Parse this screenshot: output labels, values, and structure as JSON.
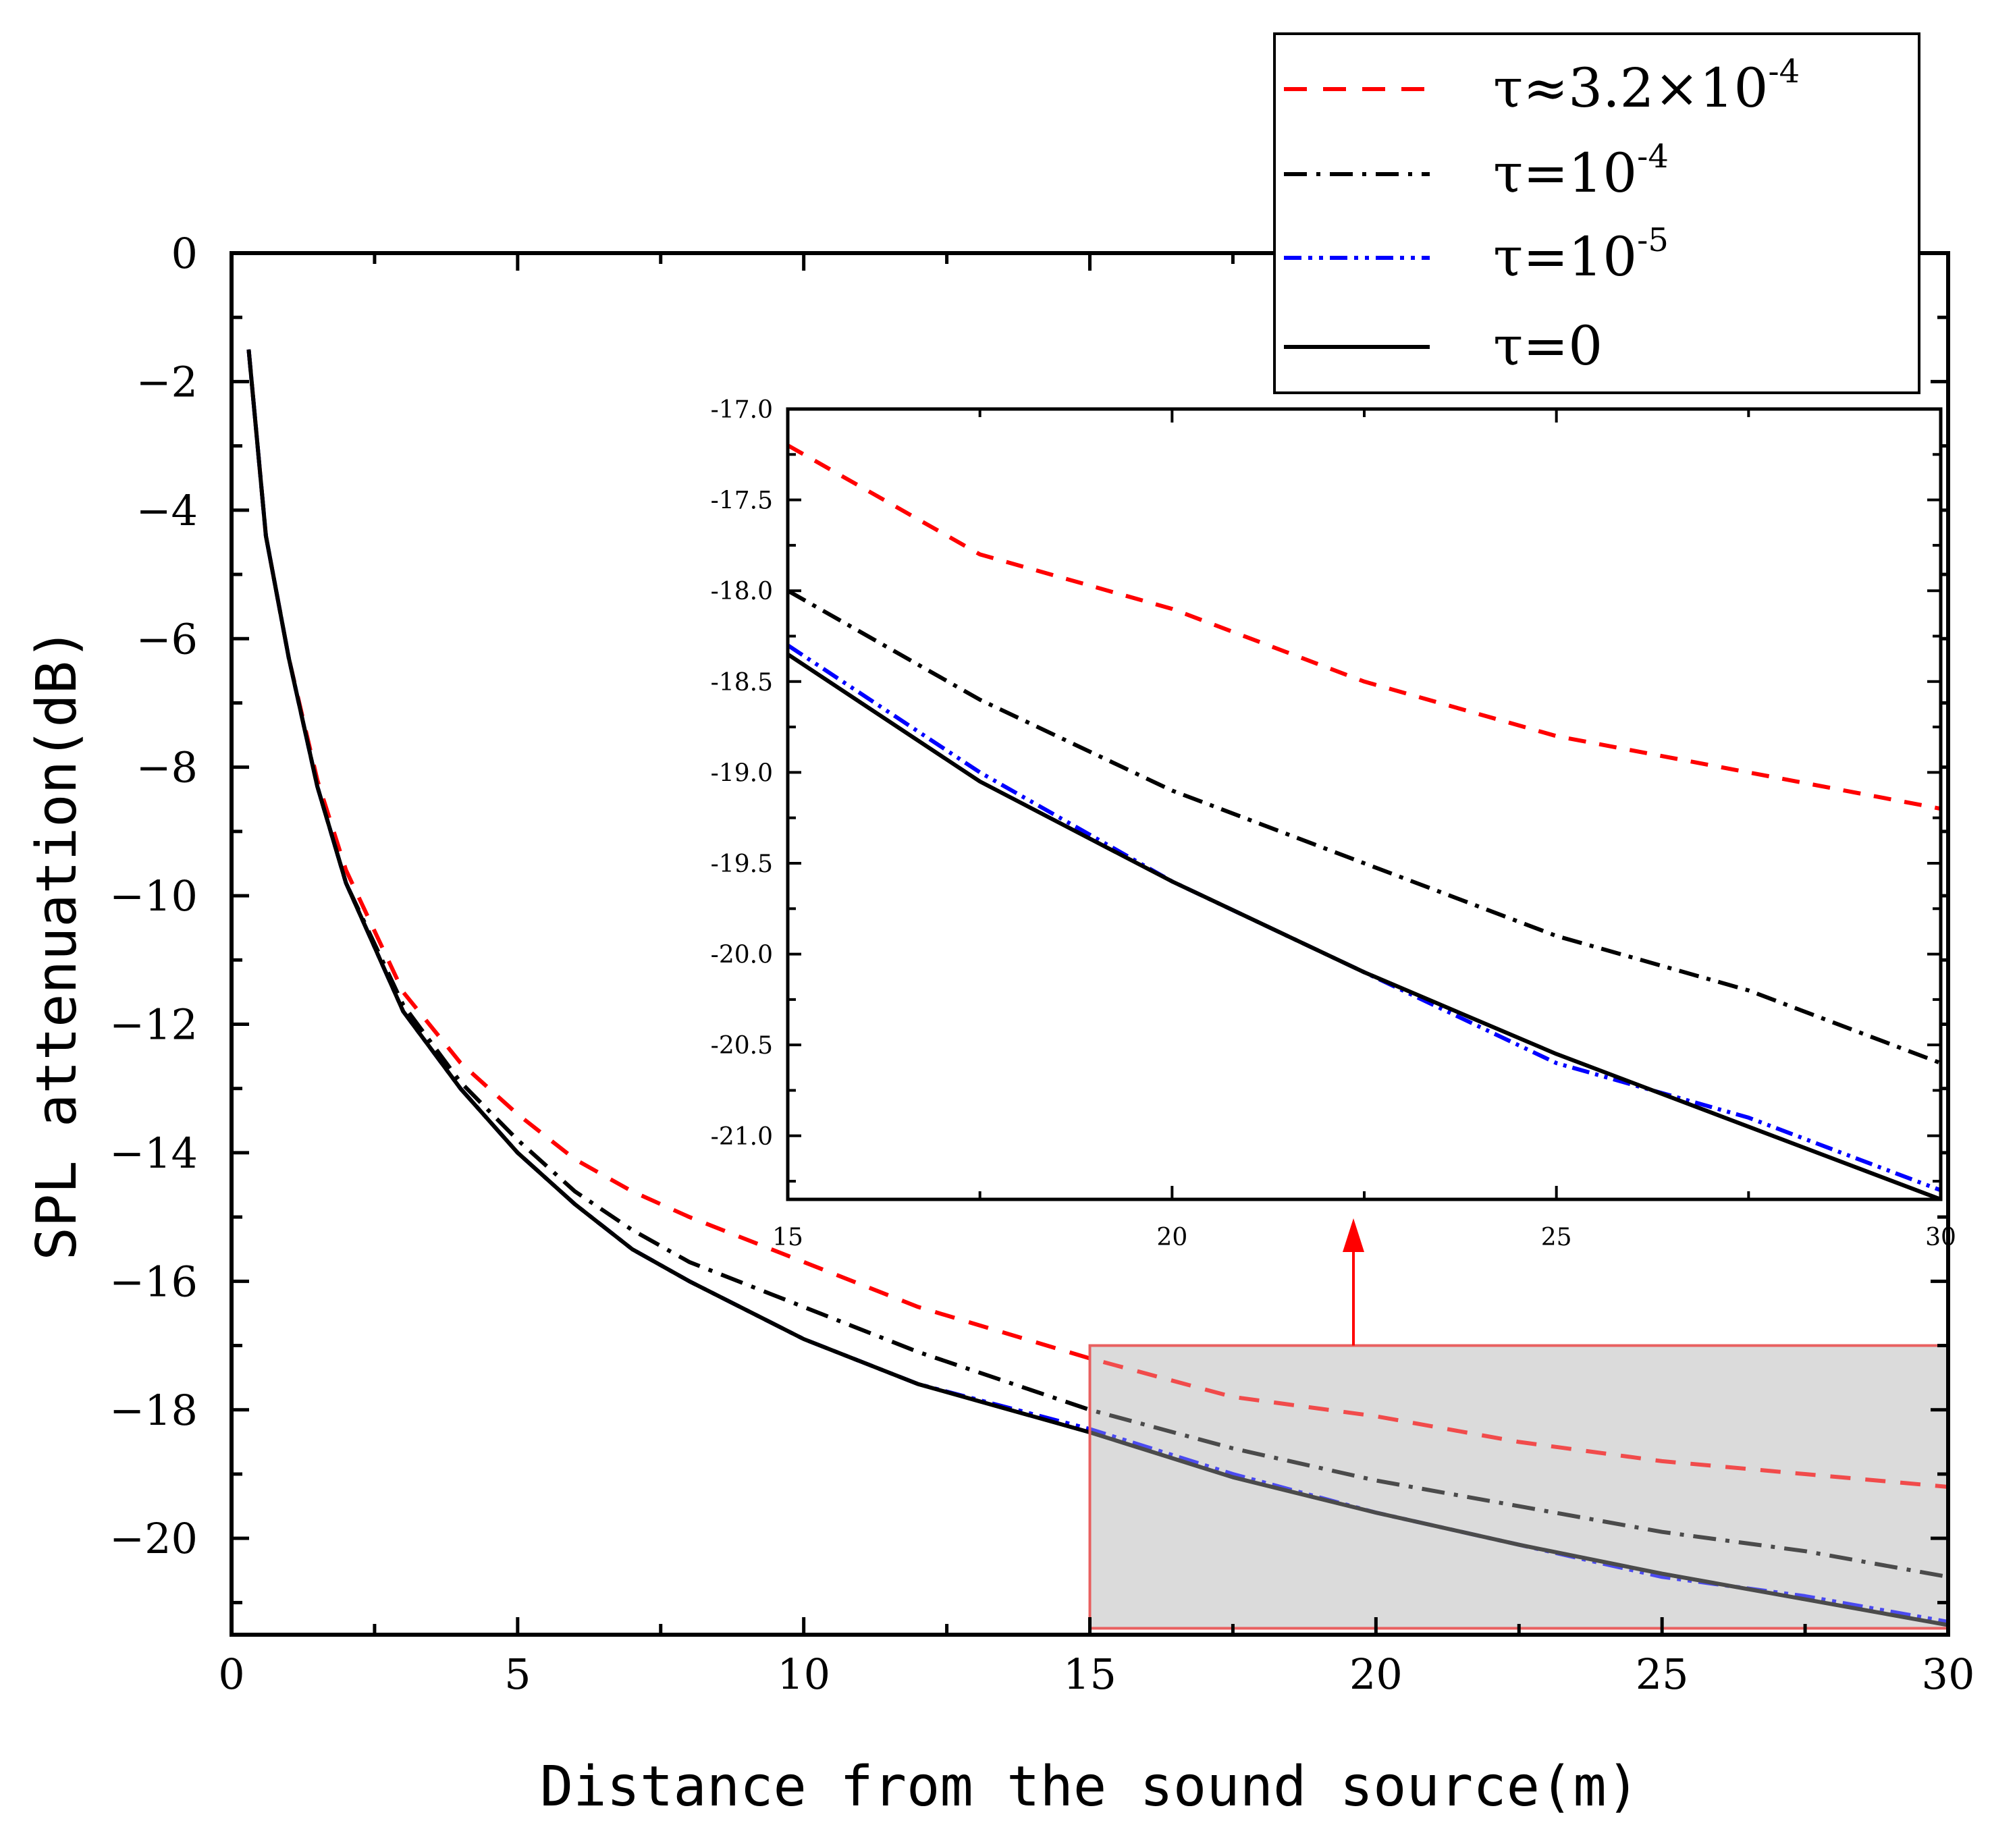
{
  "chart_data": {
    "type": "line",
    "xlabel": "Distance from the sound source(m)",
    "ylabel": "SPL attenuation(dB)",
    "xlim": [
      0,
      30
    ],
    "ylim": [
      -21.5,
      0
    ],
    "xticks": [
      0,
      5,
      10,
      15,
      20,
      25,
      30
    ],
    "yticks": [
      0,
      -2,
      -4,
      -6,
      -8,
      -10,
      -12,
      -14,
      -16,
      -18,
      -20
    ],
    "x": [
      0.3,
      0.6,
      1.0,
      1.5,
      2.0,
      3.0,
      4.0,
      5.0,
      6.0,
      7.0,
      8.0,
      10.0,
      12.0,
      15.0,
      17.5,
      20.0,
      22.5,
      25.0,
      27.5,
      30.0
    ],
    "series": [
      {
        "name": "tau_3.2e-4",
        "label": "τ≈3.2×10",
        "exp": "-4",
        "color": "#ff0000",
        "dash": "dashed",
        "values": [
          -1.5,
          -4.4,
          -6.3,
          -8.2,
          -9.6,
          -11.5,
          -12.6,
          -13.4,
          -14.1,
          -14.6,
          -15.0,
          -15.7,
          -16.4,
          -17.2,
          -17.8,
          -18.1,
          -18.5,
          -18.8,
          -19.0,
          -19.2
        ]
      },
      {
        "name": "tau_1e-4",
        "label": "τ=10",
        "exp": "-4",
        "color": "#000000",
        "dash": "dashdot",
        "values": [
          -1.5,
          -4.4,
          -6.3,
          -8.3,
          -9.8,
          -11.7,
          -12.9,
          -13.8,
          -14.6,
          -15.2,
          -15.7,
          -16.4,
          -17.1,
          -18.0,
          -18.6,
          -19.1,
          -19.5,
          -19.9,
          -20.2,
          -20.6
        ]
      },
      {
        "name": "tau_1e-5",
        "label": "τ=10",
        "exp": "-5",
        "color": "#0000ff",
        "dash": "dashdotdot",
        "values": [
          -1.5,
          -4.4,
          -6.3,
          -8.3,
          -9.8,
          -11.8,
          -13.0,
          -14.0,
          -14.8,
          -15.5,
          -16.0,
          -16.9,
          -17.6,
          -18.3,
          -19.0,
          -19.6,
          -20.1,
          -20.6,
          -20.9,
          -21.3
        ]
      },
      {
        "name": "tau_0",
        "label": "τ=0",
        "exp": "",
        "color": "#000000",
        "dash": "solid",
        "values": [
          -1.5,
          -4.4,
          -6.3,
          -8.3,
          -9.8,
          -11.8,
          -13.0,
          -14.0,
          -14.8,
          -15.5,
          -16.0,
          -16.9,
          -17.6,
          -18.35,
          -19.05,
          -19.6,
          -20.1,
          -20.55,
          -20.95,
          -21.35
        ]
      }
    ],
    "inset": {
      "xlim": [
        15,
        30
      ],
      "ylim": [
        -21.35,
        -17.0
      ],
      "xticks": [
        15,
        20,
        25,
        30
      ],
      "yticks": [
        "-17.0",
        "-17.5",
        "-18.0",
        "-18.5",
        "-19.0",
        "-19.5",
        "-20.0",
        "-20.5",
        "-21.0"
      ],
      "zoom_region": {
        "x": [
          15,
          30
        ],
        "y": [
          -21.4,
          -17.0
        ]
      }
    },
    "legend_position": "top-right"
  }
}
